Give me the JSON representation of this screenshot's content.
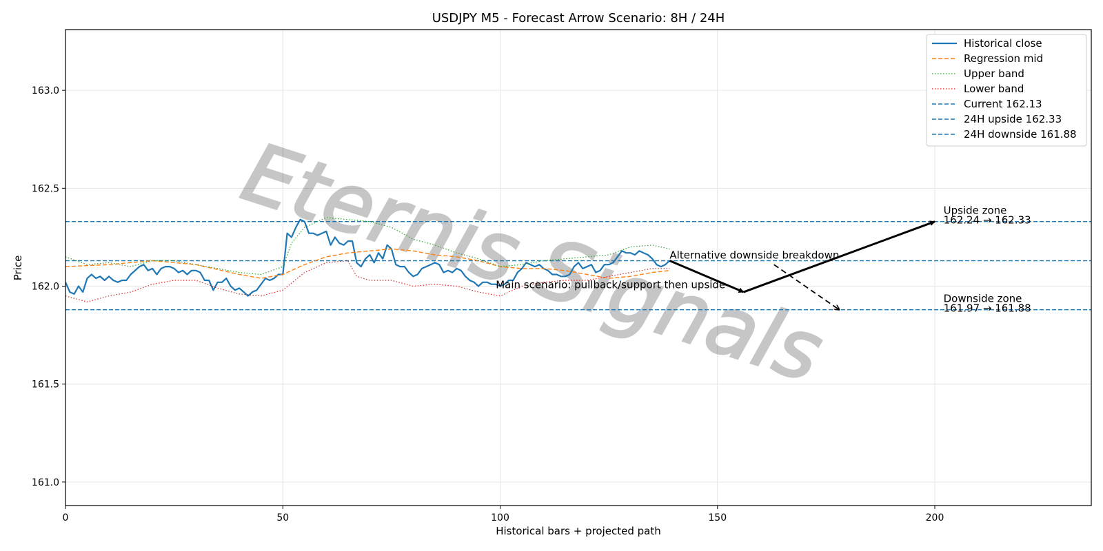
{
  "chart_data": {
    "type": "line",
    "title": "USDJPY M5 - Forecast Arrow Scenario: 8H / 24H",
    "xlabel": "Historical bars + projected path",
    "ylabel": "Price",
    "xlim": [
      0,
      236
    ],
    "ylim": [
      160.88,
      163.31
    ],
    "xticks": [
      0,
      50,
      100,
      150,
      200
    ],
    "xtick_labels": [
      "0",
      "50",
      "100",
      "150",
      "200"
    ],
    "yticks": [
      161.0,
      161.5,
      162.0,
      162.5,
      163.0
    ],
    "ytick_labels": [
      "161.0",
      "161.5",
      "162.0",
      "162.5",
      "163.0"
    ],
    "grid": true,
    "legend_position": "top-right",
    "watermark": "Eternis Signals",
    "colors": {
      "historical": "#1f77b4",
      "regression": "#ff7f0e",
      "upper": "#2ca02c",
      "lower": "#d62728",
      "hline": "#1f77b4",
      "arrow": "#000000"
    },
    "series": [
      {
        "name": "Historical close",
        "style": "solid",
        "x_start": 0,
        "values": [
          162.02,
          161.97,
          161.96,
          162.0,
          161.97,
          162.04,
          162.06,
          162.04,
          162.05,
          162.03,
          162.05,
          162.03,
          162.02,
          162.03,
          162.03,
          162.06,
          162.08,
          162.1,
          162.11,
          162.08,
          162.09,
          162.06,
          162.09,
          162.1,
          162.1,
          162.09,
          162.07,
          162.08,
          162.06,
          162.08,
          162.08,
          162.07,
          162.03,
          162.03,
          161.98,
          162.02,
          162.02,
          162.04,
          162.0,
          161.98,
          161.99,
          161.97,
          161.95,
          161.97,
          161.98,
          162.01,
          162.04,
          162.03,
          162.04,
          162.06,
          162.06,
          162.27,
          162.25,
          162.3,
          162.34,
          162.33,
          162.27,
          162.27,
          162.26,
          162.27,
          162.28,
          162.21,
          162.25,
          162.22,
          162.21,
          162.23,
          162.23,
          162.12,
          162.1,
          162.14,
          162.16,
          162.12,
          162.17,
          162.14,
          162.21,
          162.19,
          162.11,
          162.1,
          162.1,
          162.07,
          162.05,
          162.06,
          162.09,
          162.1,
          162.11,
          162.12,
          162.11,
          162.07,
          162.08,
          162.07,
          162.09,
          162.08,
          162.05,
          162.03,
          162.02,
          162.0,
          162.02,
          162.02,
          162.01,
          162.01,
          162.0,
          162.01,
          162.03,
          162.03,
          162.07,
          162.09,
          162.12,
          162.11,
          162.1,
          162.11,
          162.09,
          162.08,
          162.06,
          162.06,
          162.05,
          162.05,
          162.06,
          162.1,
          162.12,
          162.09,
          162.1,
          162.11,
          162.07,
          162.08,
          162.11,
          162.11,
          162.12,
          162.15,
          162.18,
          162.17,
          162.17,
          162.16,
          162.18,
          162.17,
          162.16,
          162.14,
          162.11,
          162.1,
          162.11,
          162.13
        ]
      },
      {
        "name": "Regression mid",
        "style": "dashed",
        "points": [
          [
            0,
            162.1
          ],
          [
            10,
            162.11
          ],
          [
            20,
            162.13
          ],
          [
            30,
            162.11
          ],
          [
            40,
            162.06
          ],
          [
            45,
            162.04
          ],
          [
            50,
            162.06
          ],
          [
            55,
            162.11
          ],
          [
            60,
            162.15
          ],
          [
            65,
            162.17
          ],
          [
            70,
            162.18
          ],
          [
            75,
            162.19
          ],
          [
            80,
            162.18
          ],
          [
            85,
            162.16
          ],
          [
            90,
            162.15
          ],
          [
            95,
            162.13
          ],
          [
            100,
            162.1
          ],
          [
            105,
            162.09
          ],
          [
            110,
            162.09
          ],
          [
            115,
            162.08
          ],
          [
            120,
            162.06
          ],
          [
            125,
            162.04
          ],
          [
            130,
            162.05
          ],
          [
            135,
            162.07
          ],
          [
            139,
            162.08
          ]
        ]
      },
      {
        "name": "Upper band",
        "style": "dotted",
        "points": [
          [
            0,
            162.15
          ],
          [
            5,
            162.11
          ],
          [
            10,
            162.12
          ],
          [
            15,
            162.1
          ],
          [
            20,
            162.13
          ],
          [
            25,
            162.13
          ],
          [
            30,
            162.11
          ],
          [
            35,
            162.09
          ],
          [
            40,
            162.07
          ],
          [
            45,
            162.06
          ],
          [
            50,
            162.1
          ],
          [
            52,
            162.22
          ],
          [
            55,
            162.3
          ],
          [
            60,
            162.35
          ],
          [
            65,
            162.34
          ],
          [
            70,
            162.33
          ],
          [
            75,
            162.3
          ],
          [
            80,
            162.24
          ],
          [
            85,
            162.21
          ],
          [
            90,
            162.17
          ],
          [
            95,
            162.14
          ],
          [
            100,
            162.1
          ],
          [
            105,
            162.11
          ],
          [
            110,
            162.13
          ],
          [
            115,
            162.14
          ],
          [
            120,
            162.15
          ],
          [
            125,
            162.16
          ],
          [
            130,
            162.2
          ],
          [
            135,
            162.21
          ],
          [
            139,
            162.19
          ]
        ]
      },
      {
        "name": "Lower band",
        "style": "dotted",
        "points": [
          [
            0,
            161.95
          ],
          [
            5,
            161.92
          ],
          [
            10,
            161.95
          ],
          [
            15,
            161.97
          ],
          [
            20,
            162.01
          ],
          [
            25,
            162.03
          ],
          [
            30,
            162.03
          ],
          [
            35,
            161.99
          ],
          [
            40,
            161.96
          ],
          [
            45,
            161.95
          ],
          [
            50,
            161.98
          ],
          [
            55,
            162.07
          ],
          [
            60,
            162.12
          ],
          [
            65,
            162.13
          ],
          [
            67,
            162.05
          ],
          [
            70,
            162.03
          ],
          [
            75,
            162.03
          ],
          [
            80,
            162.0
          ],
          [
            85,
            162.01
          ],
          [
            90,
            162.0
          ],
          [
            95,
            161.97
          ],
          [
            100,
            161.95
          ],
          [
            105,
            162.0
          ],
          [
            110,
            162.02
          ],
          [
            115,
            162.03
          ],
          [
            120,
            162.03
          ],
          [
            125,
            162.05
          ],
          [
            130,
            162.07
          ],
          [
            135,
            162.09
          ],
          [
            139,
            162.09
          ]
        ]
      },
      {
        "name": "Current 162.13",
        "style": "hline",
        "y": 162.13
      },
      {
        "name": "24H upside 162.33",
        "style": "hline",
        "y": 162.33
      },
      {
        "name": "24H downside 161.88",
        "style": "hline",
        "y": 161.88
      }
    ],
    "arrows": [
      {
        "name": "main-path-leg-1",
        "style": "solid",
        "from": [
          139,
          162.13
        ],
        "to": [
          156,
          161.97
        ]
      },
      {
        "name": "main-path-leg-2",
        "style": "solid",
        "from": [
          156,
          161.97
        ],
        "to": [
          200,
          162.33
        ]
      },
      {
        "name": "alt-path",
        "style": "dashed",
        "from": [
          163,
          162.11
        ],
        "to": [
          178,
          161.88
        ]
      }
    ],
    "annotations": [
      {
        "name": "main-scenario-label",
        "text": "Main scenario: pullback/support then upside",
        "x": 99,
        "y": 161.99
      },
      {
        "name": "alt-scenario-label",
        "text": "Alternative downside breakdown",
        "x": 139,
        "y": 162.14
      },
      {
        "name": "upside-zone-label",
        "text": "Upside zone",
        "x": 202,
        "y": 162.37
      },
      {
        "name": "upside-zone-range",
        "text": "162.24 → 162.33",
        "x": 202,
        "y": 162.32
      },
      {
        "name": "downside-zone-label",
        "text": "Downside zone",
        "x": 202,
        "y": 161.92
      },
      {
        "name": "downside-zone-range",
        "text": "161.97 → 161.88",
        "x": 202,
        "y": 161.87
      }
    ]
  }
}
